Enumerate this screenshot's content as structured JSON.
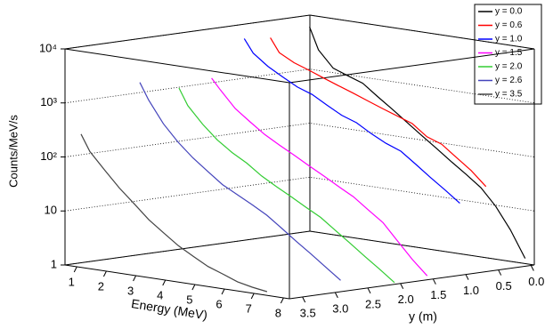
{
  "chart_data": {
    "type": "waterfall3d",
    "xlabel": "Energy (MeV)",
    "ylabel": "y (m)",
    "zlabel": "Counts/MeV/s",
    "x": [
      0.7,
      1,
      1.5,
      2,
      2.5,
      3,
      3.5,
      4,
      4.5,
      5,
      5.5,
      6,
      6.5,
      7,
      7.5,
      8
    ],
    "xlim": [
      0.6,
      8.2
    ],
    "xticks": [
      1,
      2,
      3,
      4,
      5,
      6,
      7,
      8
    ],
    "ylim": [
      3.7,
      -0.05
    ],
    "yticks": [
      {
        "value": 3.5,
        "label": "3.5"
      },
      {
        "value": 3,
        "label": "3.0"
      },
      {
        "value": 2.5,
        "label": "2.5"
      },
      {
        "value": 2,
        "label": "2.0"
      },
      {
        "value": 1.5,
        "label": "1.5"
      },
      {
        "value": 1,
        "label": "1.0"
      },
      {
        "value": 0.5,
        "label": "0.5"
      },
      {
        "value": 0,
        "label": "0.0"
      }
    ],
    "zlim": [
      1,
      10000
    ],
    "zscale": "log",
    "zticks": [
      1,
      10,
      {
        "value": 100,
        "label": "10²"
      },
      {
        "value": 1000,
        "label": "10³"
      },
      {
        "value": 10000,
        "label": "10⁴"
      }
    ],
    "grid": true,
    "legend": "upper right",
    "series": [
      {
        "name": "y = 0.0",
        "y": 0,
        "color": "#000000",
        "values": [
          6300,
          2500,
          1260,
          1000,
          800,
          500,
          320,
          200,
          126,
          80,
          50,
          32,
          20,
          10,
          4,
          1.3
        ]
      },
      {
        "name": "y = 0.6",
        "y": 0.6,
        "color": "#ff0000",
        "values": [
          5000,
          2800,
          2000,
          1600,
          1260,
          1000,
          800,
          630,
          500,
          400,
          320,
          200,
          160,
          100,
          63,
          35
        ]
      },
      {
        "name": "y = 1.0",
        "y": 1,
        "color": "#0000ff",
        "values": [
          5600,
          3200,
          2000,
          1400,
          1000,
          800,
          560,
          400,
          320,
          220,
          160,
          126,
          80,
          50,
          32,
          20
        ]
      },
      {
        "name": "y = 1.5",
        "y": 1.5,
        "color": "#ff00ff",
        "values": [
          1260,
          800,
          400,
          250,
          160,
          112,
          80,
          56,
          40,
          28,
          20,
          12.6,
          8,
          4,
          2,
          1.1
        ]
      },
      {
        "name": "y = 2.0",
        "y": 2,
        "color": "#33cc33",
        "values": [
          1000,
          500,
          250,
          140,
          90,
          63,
          40,
          28,
          20,
          14,
          10,
          6.3,
          4,
          2.5,
          1.6,
          1
        ]
      },
      {
        "name": "y = 2.6",
        "y": 2.6,
        "color": "#4444bb",
        "values": [
          1600,
          800,
          320,
          160,
          90,
          56,
          35,
          25,
          18,
          12.6,
          8,
          5,
          3.2,
          2,
          1.26,
          null
        ]
      },
      {
        "name": "y = 3.5",
        "y": 3.5,
        "color": "#444444",
        "values": [
          250,
          126,
          63,
          32,
          18,
          10,
          6.3,
          4,
          2.8,
          2,
          1.6,
          1.26,
          1.1,
          1,
          null,
          null
        ]
      }
    ]
  }
}
